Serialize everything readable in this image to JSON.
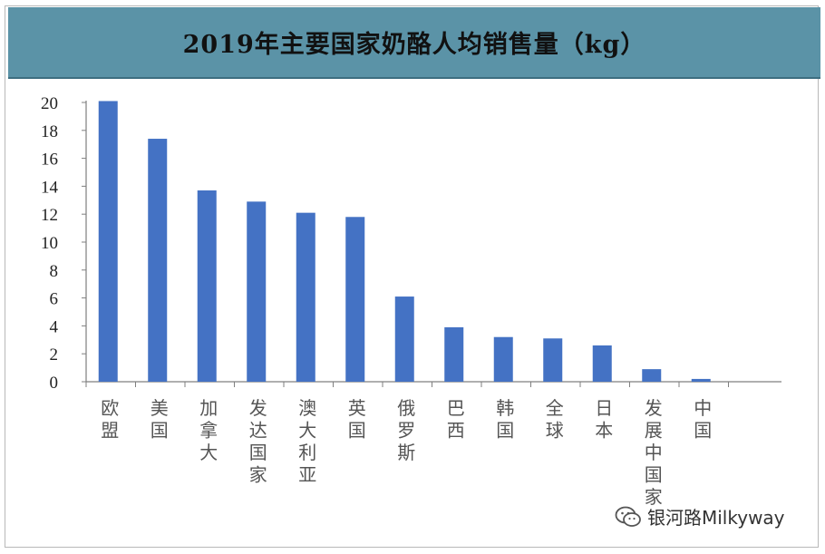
{
  "chart_data": {
    "type": "bar",
    "title": "2019年主要国家奶酪人均销售量（kg）",
    "categories": [
      "欧盟",
      "美国",
      "加拿大",
      "发达国家",
      "澳大利亚",
      "英国",
      "俄罗斯",
      "巴西",
      "韩国",
      "全球",
      "日本",
      "发展中国家",
      "中国"
    ],
    "values": [
      20.1,
      17.4,
      13.7,
      12.9,
      12.1,
      11.8,
      6.1,
      3.9,
      3.2,
      3.1,
      2.6,
      0.9,
      0.2
    ],
    "xlabel": "",
    "ylabel": "",
    "ylim": [
      0,
      20
    ],
    "yticks": [
      0,
      2,
      4,
      6,
      8,
      10,
      12,
      14,
      16,
      18,
      20
    ],
    "grid": false,
    "bar_color": "#4472c4"
  },
  "header_color": "#5b93a7",
  "watermark": {
    "text": "银河路Milkyway",
    "icon": "wechat-icon"
  }
}
